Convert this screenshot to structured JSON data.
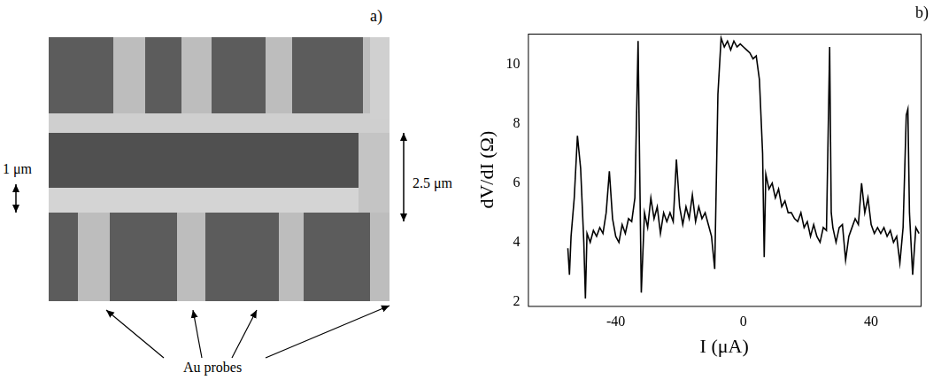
{
  "chart_data": {
    "type": "line",
    "panel_label": "b)",
    "x_label": "I (μA)",
    "y_label": "dV/dI (Ω)",
    "x": [
      -55,
      -54.5,
      -54,
      -53,
      -52,
      -51,
      -50,
      -49.5,
      -49,
      -48,
      -47,
      -46,
      -45,
      -44,
      -43,
      -42,
      -41,
      -40,
      -39,
      -38,
      -37,
      -36,
      -35,
      -34,
      -33,
      -32.5,
      -32,
      -31,
      -30,
      -29,
      -28,
      -27,
      -26,
      -25,
      -24,
      -23,
      -22,
      -21,
      -20,
      -19,
      -18,
      -17,
      -16,
      -15,
      -14,
      -13,
      -12,
      -11,
      -10,
      -9,
      -8,
      -7,
      -6,
      -5,
      -4,
      -3,
      -2,
      -1,
      0,
      1,
      2,
      3,
      4,
      5,
      6,
      6.5,
      7,
      8,
      9,
      10,
      11,
      12,
      13,
      14,
      15,
      16,
      17,
      18,
      19,
      20,
      21,
      22,
      23,
      24,
      25,
      26,
      27,
      27.5,
      28,
      29,
      30,
      31,
      32,
      33,
      34,
      35,
      36,
      37,
      38,
      39,
      40,
      41,
      42,
      43,
      44,
      45,
      46,
      47,
      48,
      49,
      50,
      51,
      51.5,
      52,
      53,
      54,
      55
    ],
    "values": [
      3.8,
      2.9,
      4.2,
      5.5,
      7.6,
      6.5,
      4.0,
      2.1,
      4.3,
      4.0,
      4.4,
      4.2,
      4.5,
      4.3,
      5.0,
      6.4,
      4.8,
      4.2,
      4.0,
      4.6,
      4.3,
      4.8,
      4.7,
      5.5,
      10.8,
      6.5,
      2.3,
      5.0,
      4.5,
      5.5,
      4.8,
      5.2,
      4.3,
      5.0,
      4.7,
      5.0,
      4.7,
      6.8,
      5.2,
      4.6,
      5.2,
      4.8,
      5.6,
      4.7,
      5.2,
      4.8,
      5.0,
      4.6,
      4.2,
      3.1,
      9.0,
      10.9,
      10.6,
      10.8,
      10.5,
      10.8,
      10.6,
      10.7,
      10.6,
      10.5,
      10.4,
      10.2,
      10.3,
      9.5,
      7.0,
      3.5,
      6.3,
      5.8,
      6.0,
      5.5,
      5.8,
      5.2,
      5.4,
      5.0,
      5.0,
      4.8,
      4.7,
      5.0,
      4.5,
      4.7,
      4.2,
      4.6,
      4.2,
      4.0,
      4.5,
      4.4,
      10.6,
      5.0,
      4.5,
      4.0,
      4.5,
      4.6,
      3.4,
      4.2,
      4.5,
      4.8,
      4.6,
      6.0,
      5.0,
      5.5,
      4.6,
      4.3,
      4.5,
      4.3,
      4.5,
      4.2,
      4.4,
      4.0,
      4.2,
      3.3,
      4.5,
      8.3,
      8.5,
      5.0,
      2.9,
      4.5,
      4.3
    ],
    "color": "#000000",
    "xlim": [
      -67.5,
      55.5
    ],
    "xticks": [
      -40,
      0,
      40
    ],
    "ylim": [
      1.85,
      11.05
    ],
    "yticks": [
      2,
      4,
      6,
      8,
      10
    ],
    "grid": false
  },
  "image_panel": {
    "panel_label": "a)",
    "width_label_left": "1 μm",
    "width_label_right": "2.5 μm",
    "probe_label": "Au probes"
  }
}
